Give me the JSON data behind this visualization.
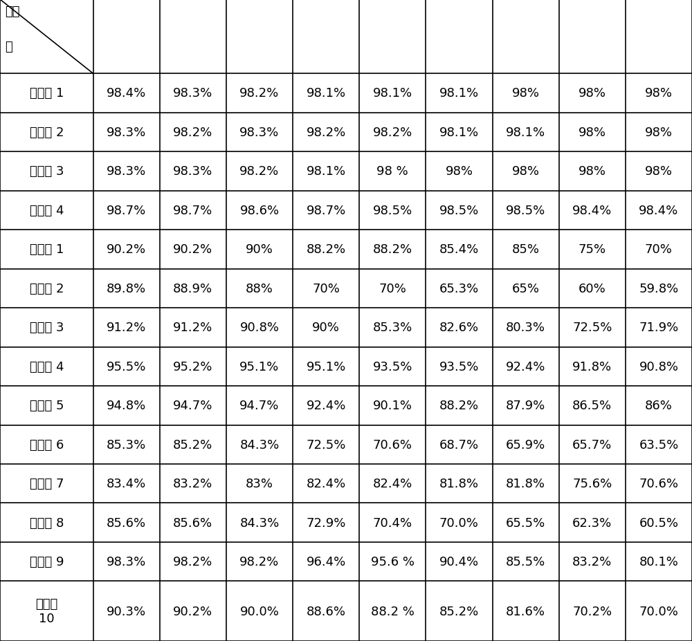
{
  "header_line1": "酯化",
  "header_line2": "率",
  "rows": [
    {
      "label": "实施例 1",
      "values": [
        "98.4%",
        "98.3%",
        "98.2%",
        "98.1%",
        "98.1%",
        "98.1%",
        "98%",
        "98%",
        "98%"
      ]
    },
    {
      "label": "实施例 2",
      "values": [
        "98.3%",
        "98.2%",
        "98.3%",
        "98.2%",
        "98.2%",
        "98.1%",
        "98.1%",
        "98%",
        "98%"
      ]
    },
    {
      "label": "实施例 3",
      "values": [
        "98.3%",
        "98.3%",
        "98.2%",
        "98.1%",
        "98 %",
        "98%",
        "98%",
        "98%",
        "98%"
      ]
    },
    {
      "label": "实施例 4",
      "values": [
        "98.7%",
        "98.7%",
        "98.6%",
        "98.7%",
        "98.5%",
        "98.5%",
        "98.5%",
        "98.4%",
        "98.4%"
      ]
    },
    {
      "label": "对比例 1",
      "values": [
        "90.2%",
        "90.2%",
        "90%",
        "88.2%",
        "88.2%",
        "85.4%",
        "85%",
        "75%",
        "70%"
      ]
    },
    {
      "label": "对比例 2",
      "values": [
        "89.8%",
        "88.9%",
        "88%",
        "70%",
        "70%",
        "65.3%",
        "65%",
        "60%",
        "59.8%"
      ]
    },
    {
      "label": "对比例 3",
      "values": [
        "91.2%",
        "91.2%",
        "90.8%",
        "90%",
        "85.3%",
        "82.6%",
        "80.3%",
        "72.5%",
        "71.9%"
      ]
    },
    {
      "label": "对比例 4",
      "values": [
        "95.5%",
        "95.2%",
        "95.1%",
        "95.1%",
        "93.5%",
        "93.5%",
        "92.4%",
        "91.8%",
        "90.8%"
      ]
    },
    {
      "label": "对比例 5",
      "values": [
        "94.8%",
        "94.7%",
        "94.7%",
        "92.4%",
        "90.1%",
        "88.2%",
        "87.9%",
        "86.5%",
        "86%"
      ]
    },
    {
      "label": "对比例 6",
      "values": [
        "85.3%",
        "85.2%",
        "84.3%",
        "72.5%",
        "70.6%",
        "68.7%",
        "65.9%",
        "65.7%",
        "63.5%"
      ]
    },
    {
      "label": "对比例 7",
      "values": [
        "83.4%",
        "83.2%",
        "83%",
        "82.4%",
        "82.4%",
        "81.8%",
        "81.8%",
        "75.6%",
        "70.6%"
      ]
    },
    {
      "label": "对比例 8",
      "values": [
        "85.6%",
        "85.6%",
        "84.3%",
        "72.9%",
        "70.4%",
        "70.0%",
        "65.5%",
        "62.3%",
        "60.5%"
      ]
    },
    {
      "label": "对比例 9",
      "values": [
        "98.3%",
        "98.2%",
        "98.2%",
        "96.4%",
        "95.6 %",
        "90.4%",
        "85.5%",
        "83.2%",
        "80.1%"
      ]
    },
    {
      "label": "对比例\n10",
      "values": [
        "90.3%",
        "90.2%",
        "90.0%",
        "88.6%",
        "88.2 %",
        "85.2%",
        "81.6%",
        "70.2%",
        "70.0%"
      ]
    }
  ],
  "bg_color": "#ffffff",
  "text_color": "#000000",
  "border_color": "#000000",
  "font_size": 13,
  "header_font_size": 13,
  "col_widths": [
    1.35,
    0.965,
    0.965,
    0.965,
    0.965,
    0.965,
    0.965,
    0.965,
    0.965,
    0.965
  ],
  "row_heights": [
    1.3,
    0.685,
    0.685,
    0.685,
    0.685,
    0.685,
    0.685,
    0.685,
    0.685,
    0.685,
    0.685,
    0.685,
    0.685,
    0.685,
    1.05
  ]
}
